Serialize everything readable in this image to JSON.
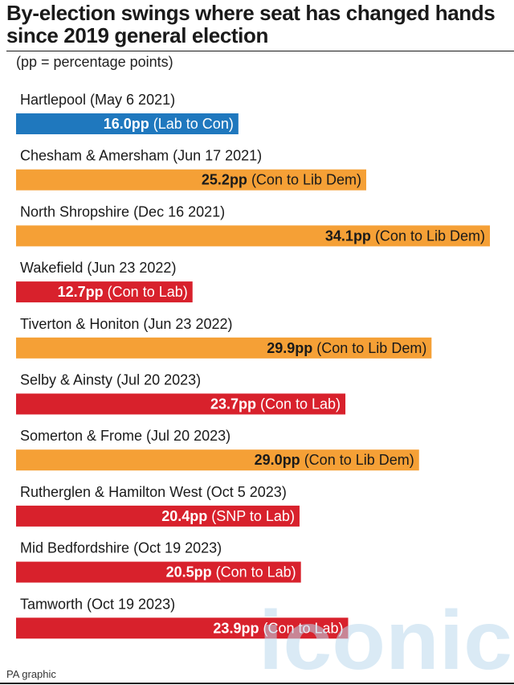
{
  "title": "By-election swings where seat has changed hands since 2019 general election",
  "note": "(pp = percentage points)",
  "source": "PA graphic",
  "watermark_text": "iconic",
  "colors": {
    "Lab to Con": "#1f78be",
    "Con to Lib Dem": "#f5a036",
    "Con to Lab": "#d8212c",
    "SNP to Lab": "#d8212c"
  },
  "chart_data": {
    "type": "bar",
    "orientation": "horizontal",
    "title": "By-election swings where seat has changed hands since 2019 general election",
    "xlabel": "",
    "ylabel": "",
    "unit": "pp",
    "grid": false,
    "legend": "none",
    "categories": [
      "Hartlepool (May 6 2021)",
      "Chesham & Amersham (Jun 17 2021)",
      "North Shropshire (Dec 16 2021)",
      "Wakefield (Jun 23 2022)",
      "Tiverton & Honiton (Jun 23 2022)",
      "Selby & Ainsty (Jul 20 2023)",
      "Somerton & Frome (Jul 20 2023)",
      "Rutherglen & Hamilton West (Oct 5 2023)",
      "Mid Bedfordshire (Oct 19 2023)",
      "Tamworth (Oct 19 2023)"
    ],
    "values": [
      16.0,
      25.2,
      34.1,
      12.7,
      29.9,
      23.7,
      29.0,
      20.4,
      20.5,
      23.9
    ],
    "value_labels": [
      "16.0pp",
      "25.2pp",
      "34.1pp",
      "12.7pp",
      "29.9pp",
      "23.7pp",
      "29.0pp",
      "20.4pp",
      "20.5pp",
      "23.9pp"
    ],
    "swing_labels": [
      "(Lab to Con)",
      "(Con to Lib Dem)",
      "(Con to Lib Dem)",
      "(Con to Lab)",
      "(Con to Lib Dem)",
      "(Con to Lab)",
      "(Con to Lib Dem)",
      "(SNP to Lab)",
      "(Con to Lab)",
      "(Con to Lab)"
    ],
    "swing_types": [
      "Lab to Con",
      "Con to Lib Dem",
      "Con to Lib Dem",
      "Con to Lab",
      "Con to Lib Dem",
      "Con to Lab",
      "Con to Lib Dem",
      "SNP to Lab",
      "Con to Lab",
      "Con to Lab"
    ]
  }
}
